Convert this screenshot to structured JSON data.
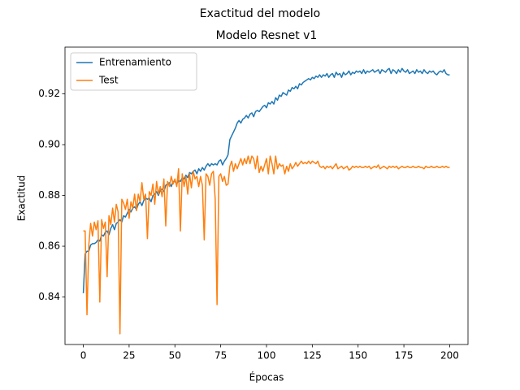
{
  "chart_data": {
    "type": "line",
    "suptitle": "Exactitud del modelo",
    "title": "Modelo Resnet v1",
    "xlabel": "Épocas",
    "ylabel": "Exactitud",
    "x": [
      0,
      1,
      2,
      3,
      4,
      5,
      6,
      7,
      8,
      9,
      10,
      11,
      12,
      13,
      14,
      15,
      16,
      17,
      18,
      19,
      20,
      21,
      22,
      23,
      24,
      25,
      26,
      27,
      28,
      29,
      30,
      31,
      32,
      33,
      34,
      35,
      36,
      37,
      38,
      39,
      40,
      41,
      42,
      43,
      44,
      45,
      46,
      47,
      48,
      49,
      50,
      51,
      52,
      53,
      54,
      55,
      56,
      57,
      58,
      59,
      60,
      61,
      62,
      63,
      64,
      65,
      66,
      67,
      68,
      69,
      70,
      71,
      72,
      73,
      74,
      75,
      76,
      77,
      78,
      79,
      80,
      81,
      82,
      83,
      84,
      85,
      86,
      87,
      88,
      89,
      90,
      91,
      92,
      93,
      94,
      95,
      96,
      97,
      98,
      99,
      100,
      101,
      102,
      103,
      104,
      105,
      106,
      107,
      108,
      109,
      110,
      111,
      112,
      113,
      114,
      115,
      116,
      117,
      118,
      119,
      120,
      121,
      122,
      123,
      124,
      125,
      126,
      127,
      128,
      129,
      130,
      131,
      132,
      133,
      134,
      135,
      136,
      137,
      138,
      139,
      140,
      141,
      142,
      143,
      144,
      145,
      146,
      147,
      148,
      149,
      150,
      151,
      152,
      153,
      154,
      155,
      156,
      157,
      158,
      159,
      160,
      161,
      162,
      163,
      164,
      165,
      166,
      167,
      168,
      169,
      170,
      171,
      172,
      173,
      174,
      175,
      176,
      177,
      178,
      179,
      180,
      181,
      182,
      183,
      184,
      185,
      186,
      187,
      188,
      189,
      190,
      191,
      192,
      193,
      194,
      195,
      196,
      197,
      198,
      199,
      200
    ],
    "series": [
      {
        "name": "Entrenamiento",
        "color": "#1f77b4",
        "values": [
          0.8415,
          0.857,
          0.858,
          0.858,
          0.8605,
          0.861,
          0.861,
          0.8615,
          0.8625,
          0.862,
          0.8645,
          0.864,
          0.8655,
          0.866,
          0.8645,
          0.867,
          0.8685,
          0.8665,
          0.869,
          0.8695,
          0.8705,
          0.8695,
          0.872,
          0.8715,
          0.873,
          0.8745,
          0.8735,
          0.875,
          0.8755,
          0.8745,
          0.8765,
          0.8775,
          0.876,
          0.878,
          0.879,
          0.8785,
          0.879,
          0.8775,
          0.88,
          0.8805,
          0.8815,
          0.88,
          0.882,
          0.8825,
          0.8815,
          0.884,
          0.8845,
          0.885,
          0.8835,
          0.8855,
          0.8855,
          0.8845,
          0.886,
          0.8855,
          0.887,
          0.8865,
          0.888,
          0.887,
          0.889,
          0.8885,
          0.8895,
          0.89,
          0.8885,
          0.8905,
          0.8895,
          0.891,
          0.89,
          0.8915,
          0.8925,
          0.8915,
          0.8925,
          0.892,
          0.8925,
          0.892,
          0.8935,
          0.894,
          0.892,
          0.8935,
          0.8945,
          0.896,
          0.902,
          0.9035,
          0.905,
          0.9065,
          0.9085,
          0.9095,
          0.9085,
          0.91,
          0.9105,
          0.9115,
          0.9105,
          0.912,
          0.9125,
          0.911,
          0.913,
          0.9135,
          0.913,
          0.914,
          0.915,
          0.9155,
          0.9145,
          0.9165,
          0.916,
          0.917,
          0.916,
          0.9185,
          0.9175,
          0.9195,
          0.919,
          0.9205,
          0.92,
          0.9195,
          0.9215,
          0.921,
          0.9225,
          0.922,
          0.923,
          0.922,
          0.924,
          0.9235,
          0.9245,
          0.925,
          0.9255,
          0.926,
          0.9255,
          0.9265,
          0.926,
          0.927,
          0.9265,
          0.9275,
          0.9265,
          0.9275,
          0.927,
          0.928,
          0.9265,
          0.9275,
          0.928,
          0.9265,
          0.9285,
          0.9275,
          0.928,
          0.9265,
          0.9285,
          0.9275,
          0.928,
          0.929,
          0.9275,
          0.9285,
          0.928,
          0.929,
          0.9285,
          0.929,
          0.928,
          0.9295,
          0.928,
          0.929,
          0.9285,
          0.929,
          0.9295,
          0.9285,
          0.929,
          0.9295,
          0.928,
          0.9295,
          0.929,
          0.9285,
          0.9295,
          0.93,
          0.928,
          0.9295,
          0.929,
          0.928,
          0.9295,
          0.9285,
          0.93,
          0.929,
          0.9285,
          0.9295,
          0.928,
          0.9285,
          0.929,
          0.928,
          0.9295,
          0.9285,
          0.929,
          0.928,
          0.9295,
          0.9285,
          0.928,
          0.929,
          0.9285,
          0.929,
          0.928,
          0.9275,
          0.9285,
          0.929,
          0.9285,
          0.9295,
          0.928,
          0.9275,
          0.9275
        ]
      },
      {
        "name": "Test",
        "color": "#ff7f0e",
        "values": [
          0.866,
          0.866,
          0.833,
          0.8605,
          0.869,
          0.864,
          0.8695,
          0.8665,
          0.87,
          0.838,
          0.8705,
          0.867,
          0.8695,
          0.848,
          0.872,
          0.8685,
          0.875,
          0.8695,
          0.8765,
          0.8735,
          0.8255,
          0.8785,
          0.877,
          0.8745,
          0.8785,
          0.871,
          0.8775,
          0.875,
          0.8805,
          0.874,
          0.8805,
          0.8775,
          0.885,
          0.8785,
          0.8805,
          0.863,
          0.8815,
          0.88,
          0.8845,
          0.8765,
          0.8855,
          0.8805,
          0.8835,
          0.8795,
          0.8865,
          0.868,
          0.8855,
          0.8835,
          0.8875,
          0.8845,
          0.8865,
          0.8835,
          0.8905,
          0.866,
          0.8885,
          0.8835,
          0.8875,
          0.8805,
          0.8885,
          0.883,
          0.8895,
          0.8865,
          0.8875,
          0.8835,
          0.8875,
          0.884,
          0.8625,
          0.8885,
          0.8875,
          0.884,
          0.8885,
          0.8895,
          0.8785,
          0.837,
          0.8875,
          0.8885,
          0.8855,
          0.8875,
          0.884,
          0.8845,
          0.8915,
          0.8935,
          0.8895,
          0.8925,
          0.8905,
          0.8925,
          0.8945,
          0.892,
          0.8945,
          0.8925,
          0.8955,
          0.8925,
          0.8955,
          0.8945,
          0.8905,
          0.8955,
          0.889,
          0.8915,
          0.8895,
          0.892,
          0.8945,
          0.8885,
          0.8955,
          0.8925,
          0.8885,
          0.8955,
          0.8905,
          0.8925,
          0.8915,
          0.892,
          0.8885,
          0.8915,
          0.8895,
          0.8925,
          0.8905,
          0.8915,
          0.893,
          0.8915,
          0.8925,
          0.8935,
          0.8925,
          0.893,
          0.8925,
          0.8935,
          0.8925,
          0.8935,
          0.893,
          0.8925,
          0.8935,
          0.8915,
          0.891,
          0.8915,
          0.8905,
          0.8915,
          0.891,
          0.8915,
          0.8905,
          0.8915,
          0.8925,
          0.8905,
          0.891,
          0.8915,
          0.8905,
          0.891,
          0.8915,
          0.89,
          0.8905,
          0.8915,
          0.891,
          0.8915,
          0.891,
          0.8915,
          0.891,
          0.891,
          0.8915,
          0.891,
          0.8915,
          0.8905,
          0.891,
          0.8915,
          0.891,
          0.892,
          0.8905,
          0.891,
          0.8915,
          0.891,
          0.8905,
          0.8915,
          0.891,
          0.8915,
          0.891,
          0.8915,
          0.8905,
          0.891,
          0.8915,
          0.891,
          0.891,
          0.8915,
          0.891,
          0.891,
          0.8915,
          0.891,
          0.891,
          0.8915,
          0.891,
          0.891,
          0.8905,
          0.8915,
          0.891,
          0.891,
          0.8915,
          0.891,
          0.891,
          0.8915,
          0.891,
          0.891,
          0.8915,
          0.891,
          0.8915,
          0.891,
          0.891
        ]
      }
    ],
    "xlim": [
      -10,
      210
    ],
    "ylim": [
      0.8213,
      0.9384
    ],
    "xticks": [
      0,
      25,
      50,
      75,
      100,
      125,
      150,
      175,
      200
    ],
    "yticks": [
      0.84,
      0.86,
      0.88,
      {
        "value": 0.9,
        "label": "0.90"
      },
      0.92
    ],
    "legend": "upper left"
  }
}
